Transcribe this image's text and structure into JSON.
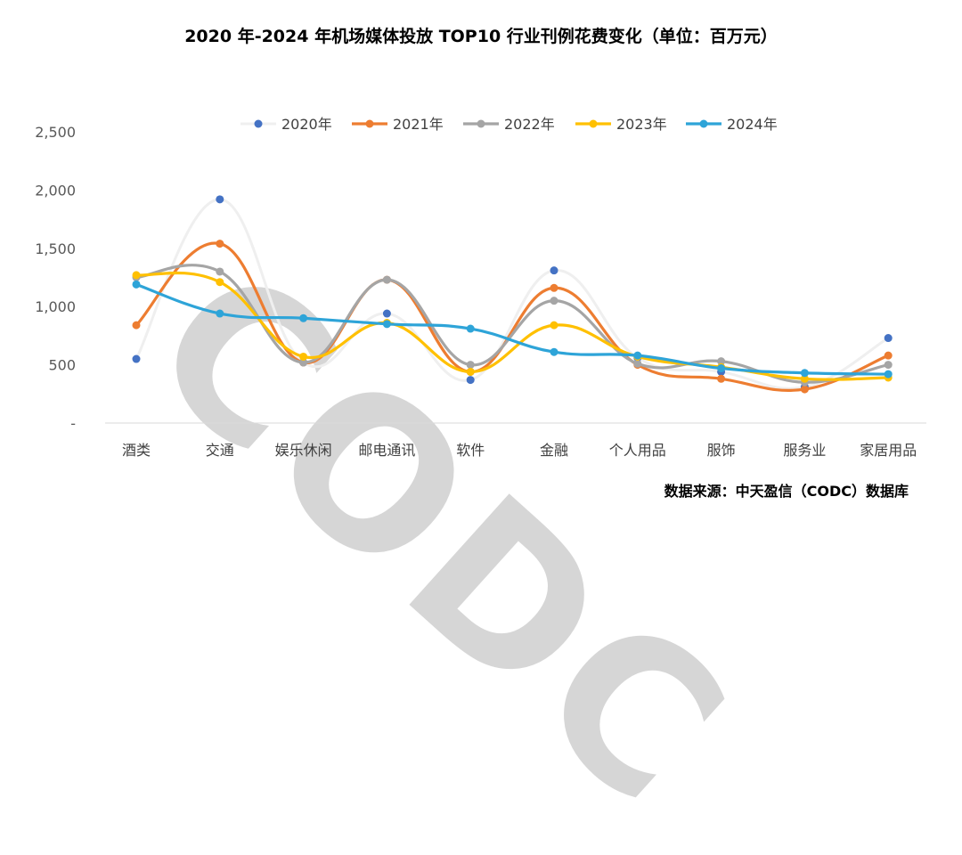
{
  "title": "2020 年-2024 年机场媒体投放 TOP10 行业刊例花费变化（单位：百万元）",
  "source": "数据来源：中天盈信（CODC）数据库",
  "watermark": "CODC",
  "chart_data": {
    "type": "line",
    "title": "2020 年-2024 年机场媒体投放 TOP10 行业刊例花费变化（单位：百万元）",
    "xlabel": "",
    "ylabel": "",
    "ylim": [
      0,
      2500
    ],
    "yticks": [
      "-",
      "500",
      "1,000",
      "1,500",
      "2,000",
      "2,500"
    ],
    "grid": false,
    "legend_position": "top",
    "categories": [
      "酒类",
      "交通",
      "娱乐休闲",
      "邮电通讯",
      "软件",
      "金融",
      "个人用品",
      "服饰",
      "服务业",
      "家居用品"
    ],
    "series": [
      {
        "name": "2020年",
        "color": "#4472C4",
        "style": "markers",
        "values": [
          550,
          1920,
          520,
          940,
          370,
          1310,
          560,
          440,
          310,
          730
        ]
      },
      {
        "name": "2021年",
        "color": "#ED7D31",
        "style": "line",
        "values": [
          840,
          1540,
          520,
          1230,
          440,
          1160,
          500,
          380,
          290,
          580
        ]
      },
      {
        "name": "2022年",
        "color": "#A5A5A5",
        "style": "line",
        "values": [
          1250,
          1300,
          520,
          1230,
          500,
          1050,
          510,
          530,
          350,
          500
        ]
      },
      {
        "name": "2023年",
        "color": "#FFC000",
        "style": "line",
        "values": [
          1270,
          1210,
          570,
          860,
          440,
          840,
          570,
          480,
          380,
          390
        ]
      },
      {
        "name": "2024年",
        "color": "#2EA4D8",
        "style": "line",
        "values": [
          1190,
          940,
          900,
          850,
          810,
          610,
          580,
          470,
          430,
          420
        ]
      }
    ]
  }
}
